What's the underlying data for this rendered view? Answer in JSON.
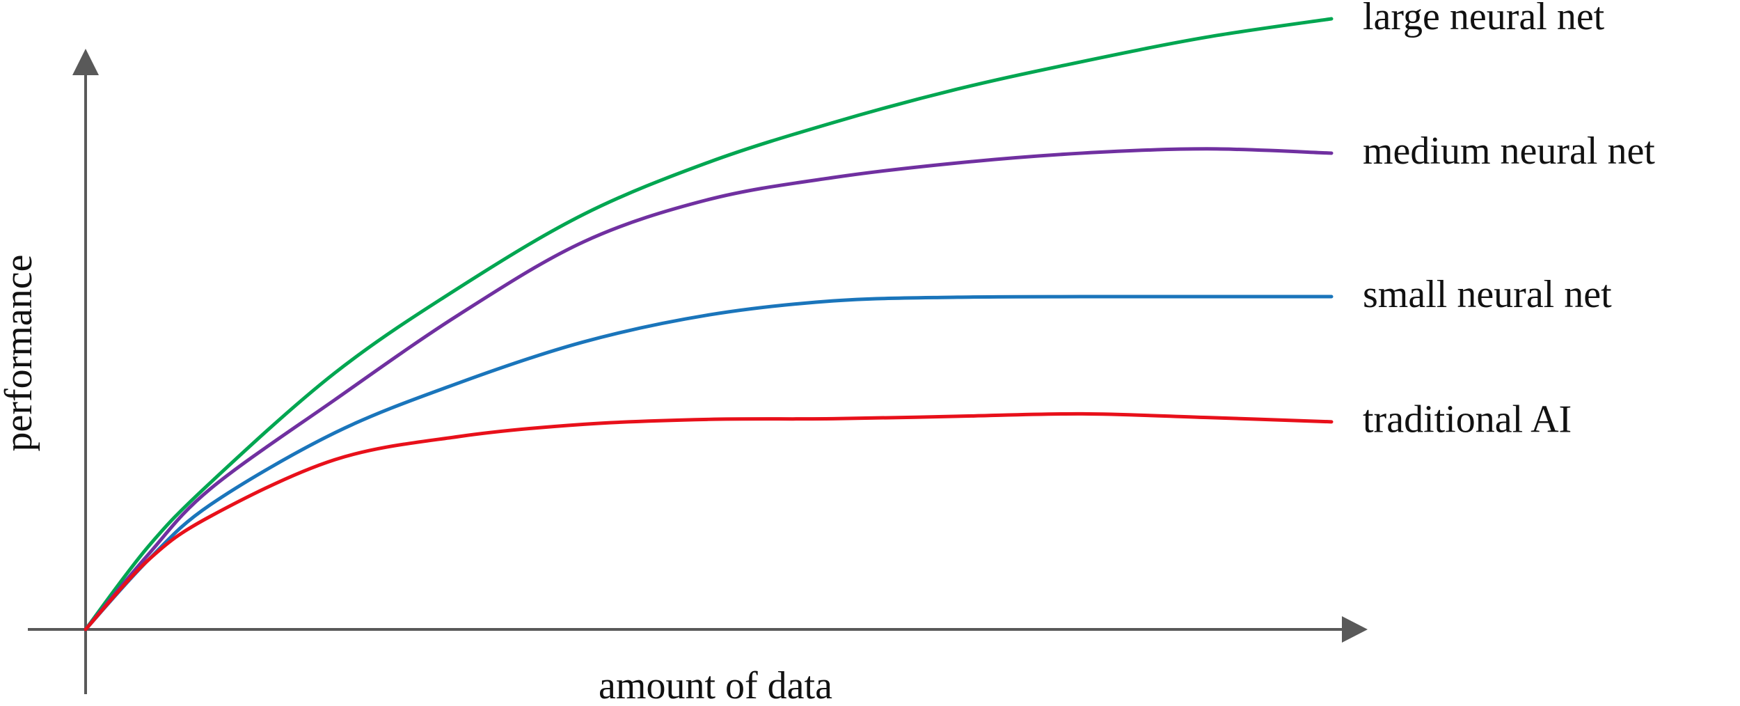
{
  "chart_data": {
    "type": "line",
    "x_label": "amount of data",
    "y_label": "performance",
    "x": [
      0,
      5,
      10,
      20,
      30,
      40,
      50,
      60,
      70,
      80,
      90,
      100
    ],
    "xlim": [
      0,
      100
    ],
    "ylim": [
      0,
      100
    ],
    "grid": false,
    "series": [
      {
        "name": "large neural net",
        "color": "#00a651",
        "values": [
          0,
          13.5,
          24,
          42,
          56,
          68,
          76.5,
          83,
          88.5,
          93,
          97,
          100
        ]
      },
      {
        "name": "medium neural net",
        "color": "#7030a0",
        "values": [
          0,
          12.2,
          23,
          37.6,
          51.6,
          63.5,
          70.4,
          74,
          76.4,
          78,
          78.7,
          78
        ]
      },
      {
        "name": "small neural net",
        "color": "#1a75bb",
        "values": [
          0,
          11.3,
          20.4,
          32.2,
          40.4,
          47.1,
          51.5,
          53.8,
          54.4,
          54.5,
          54.5,
          54.5
        ]
      },
      {
        "name": "traditional AI",
        "color": "#e8101a",
        "values": [
          0,
          11.3,
          18.5,
          27.8,
          31.6,
          33.6,
          34.4,
          34.5,
          34.9,
          35.3,
          34.7,
          34
        ]
      }
    ]
  }
}
